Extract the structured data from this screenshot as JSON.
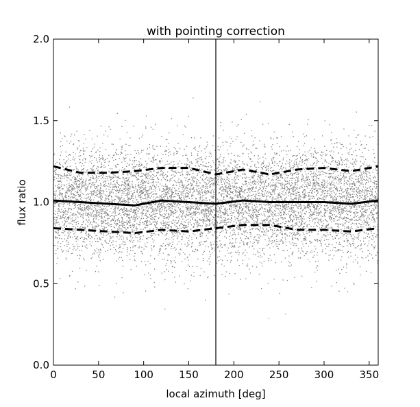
{
  "chart_data": {
    "type": "scatter",
    "title": "with pointing correction",
    "xlabel": "local azimuth [deg]",
    "ylabel": "flux ratio",
    "xlim": [
      0,
      360
    ],
    "ylim": [
      0.0,
      2.0
    ],
    "xticks": [
      "0",
      "50",
      "100",
      "150",
      "200",
      "250",
      "300",
      "350"
    ],
    "yticks": [
      "0.0",
      "0.5",
      "1.0",
      "1.5",
      "2.0"
    ],
    "grid": false,
    "legend": "none",
    "vline_x": 180,
    "scatter_description": {
      "n_points_approx": 8000,
      "x_range": [
        0,
        360
      ],
      "center": 1.0,
      "spread_sd": 0.17,
      "color": "#808080"
    },
    "series": [
      {
        "style": "solid",
        "x": [
          0,
          30,
          60,
          90,
          120,
          150,
          180,
          210,
          240,
          270,
          300,
          330,
          360
        ],
        "y": [
          1.01,
          1.0,
          0.99,
          0.98,
          1.01,
          1.0,
          0.99,
          1.01,
          1.0,
          1.0,
          1.0,
          0.99,
          1.01
        ]
      },
      {
        "style": "dashed",
        "x": [
          0,
          30,
          60,
          90,
          120,
          150,
          180,
          210,
          240,
          270,
          300,
          330,
          360
        ],
        "y": [
          1.22,
          1.18,
          1.18,
          1.19,
          1.21,
          1.21,
          1.17,
          1.2,
          1.17,
          1.2,
          1.21,
          1.19,
          1.22
        ]
      },
      {
        "style": "dashed",
        "x": [
          0,
          30,
          60,
          90,
          120,
          150,
          180,
          210,
          240,
          270,
          300,
          330,
          360
        ],
        "y": [
          0.84,
          0.83,
          0.82,
          0.81,
          0.83,
          0.82,
          0.84,
          0.86,
          0.86,
          0.83,
          0.83,
          0.82,
          0.84
        ]
      }
    ],
    "colors": {
      "points": "#808080",
      "lines": "#000000"
    }
  }
}
